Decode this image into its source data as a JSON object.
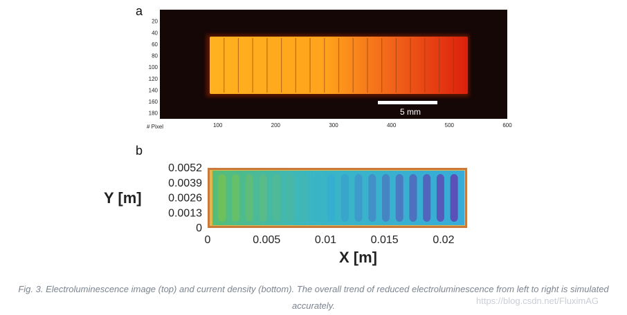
{
  "panel_a": {
    "label": "a",
    "y_axis_title": "# Pixel",
    "y_ticks": [
      "20",
      "40",
      "60",
      "80",
      "100",
      "120",
      "140",
      "160",
      "180"
    ],
    "x_ticks": [
      "100",
      "200",
      "300",
      "400",
      "500",
      "600"
    ],
    "scale_bar_label": "5 mm",
    "colors": {
      "background": "#150706",
      "bright": "#ffb21f",
      "dim": "#e0260c"
    },
    "strip_count": 18
  },
  "panel_b": {
    "label": "b",
    "chart_data": {
      "type": "heatmap",
      "title": "",
      "xlabel": "X [m]",
      "ylabel": "Y [m]",
      "xlim": [
        0,
        0.022
      ],
      "ylim": [
        0,
        0.0052
      ],
      "x_ticks": [
        "0",
        "0.005",
        "0.01",
        "0.015",
        "0.02"
      ],
      "x_tick_values": [
        0,
        0.005,
        0.01,
        0.015,
        0.02
      ],
      "y_ticks": [
        "0",
        "0.0013",
        "0.0026",
        "0.0039",
        "0.0052"
      ],
      "y_tick_values": [
        0,
        0.0013,
        0.0026,
        0.0039,
        0.0052
      ],
      "finger_count": 18,
      "trend": "current density decreases from left to right",
      "colors": {
        "border": "#c97a3a",
        "edge": "#e0b84b",
        "high": "#6ec15a",
        "mid": "#33b3d0",
        "low": "#5a50b7",
        "cell_bg": "#4fb8d4"
      }
    }
  },
  "caption": "Fig. 3. Electroluminescence image (top) and current density (bottom). The overall trend of reduced electroluminescence from left to right is simulated accurately.",
  "watermark": "https://blog.csdn.net/FluximAG"
}
